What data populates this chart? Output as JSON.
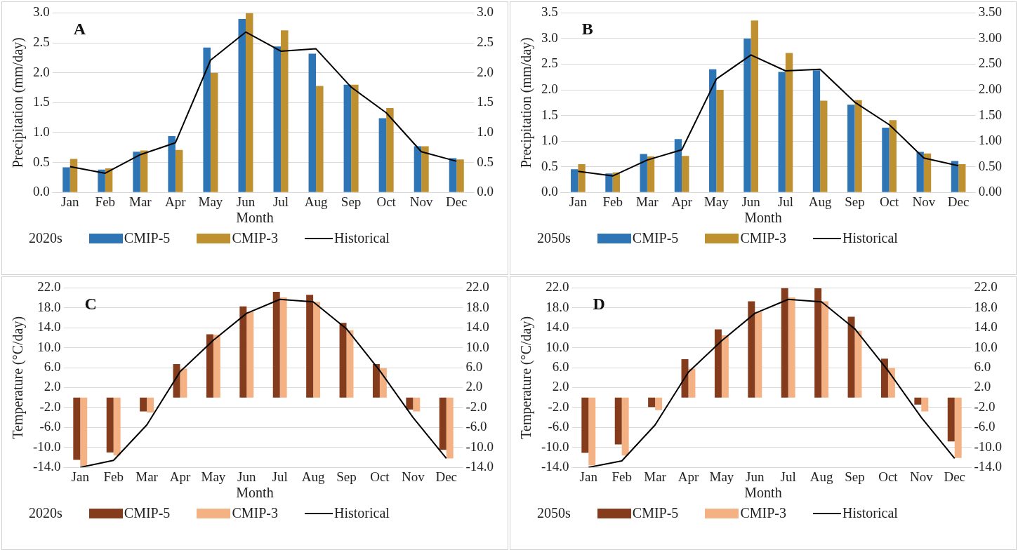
{
  "chart_data": [
    {
      "type": "bar",
      "ylabel": "Precipitation (mm/day)",
      "xlabel": "Month",
      "legend_title": "2020s",
      "legend": "bottom",
      "grid": "y",
      "marker": "none",
      "annotations": [
        "A"
      ],
      "categories": [
        "Jan",
        "Feb",
        "Mar",
        "Apr",
        "May",
        "Jun",
        "Jul",
        "Aug",
        "Sep",
        "Oct",
        "Nov",
        "Dec"
      ],
      "ylim": [
        0,
        3
      ],
      "yticks": [
        {
          "value": 0,
          "label": "0.0"
        },
        {
          "value": 0.5,
          "label": "0.5"
        },
        {
          "value": 1,
          "label": "1.0"
        },
        {
          "value": 1.5,
          "label": "1.5"
        },
        {
          "value": 2,
          "label": "2.0"
        },
        {
          "value": 2.5,
          "label": "2.5"
        },
        {
          "value": 3,
          "label": "3.0"
        }
      ],
      "y2lim": [
        0,
        3
      ],
      "y2ticks": [
        {
          "value": 0,
          "label": "0.0"
        },
        {
          "value": 0.5,
          "label": "0.5"
        },
        {
          "value": 1,
          "label": "1.0"
        },
        {
          "value": 1.5,
          "label": "1.5"
        },
        {
          "value": 2,
          "label": "2.0"
        },
        {
          "value": 2.5,
          "label": "2.5"
        },
        {
          "value": 3,
          "label": "3.0"
        }
      ],
      "series": [
        {
          "name": "CMIP-5",
          "type": "bar",
          "color": "#2e75b6",
          "values": [
            0.42,
            0.38,
            0.68,
            0.94,
            2.42,
            2.9,
            2.44,
            2.32,
            1.8,
            1.24,
            0.77,
            0.57
          ]
        },
        {
          "name": "CMIP-3",
          "type": "bar",
          "color": "#bf9030",
          "values": [
            0.56,
            0.4,
            0.7,
            0.71,
            2.0,
            3.0,
            2.71,
            1.78,
            1.8,
            1.41,
            0.77,
            0.55
          ]
        },
        {
          "name": "Historical",
          "type": "line",
          "color": "#000000",
          "values": [
            0.43,
            0.32,
            0.63,
            0.83,
            2.21,
            2.68,
            2.36,
            2.4,
            1.76,
            1.33,
            0.68,
            0.52
          ]
        }
      ]
    },
    {
      "type": "bar",
      "ylabel": "Precipitation (mm/day)",
      "xlabel": "Month",
      "legend_title": "2050s",
      "legend": "bottom",
      "grid": "y",
      "marker": "none",
      "annotations": [
        "B"
      ],
      "categories": [
        "Jan",
        "Feb",
        "Mar",
        "Apr",
        "May",
        "Jun",
        "Jul",
        "Aug",
        "Sep",
        "Oct",
        "Nov",
        "Dec"
      ],
      "ylim": [
        0,
        3.5
      ],
      "yticks": [
        {
          "value": 0,
          "label": "0.0"
        },
        {
          "value": 0.5,
          "label": "0.5"
        },
        {
          "value": 1,
          "label": "1.0"
        },
        {
          "value": 1.5,
          "label": "1.5"
        },
        {
          "value": 2,
          "label": "2.0"
        },
        {
          "value": 2.5,
          "label": "2.5"
        },
        {
          "value": 3,
          "label": "3.0"
        },
        {
          "value": 3.5,
          "label": "3.5"
        }
      ],
      "y2lim": [
        0,
        3.5
      ],
      "y2ticks": [
        {
          "value": 0,
          "label": "0.00"
        },
        {
          "value": 0.5,
          "label": "0.50"
        },
        {
          "value": 1,
          "label": "1.00"
        },
        {
          "value": 1.5,
          "label": "1.50"
        },
        {
          "value": 2,
          "label": "2.00"
        },
        {
          "value": 2.5,
          "label": "2.50"
        },
        {
          "value": 3,
          "label": "3.00"
        },
        {
          "value": 3.5,
          "label": "3.50"
        }
      ],
      "series": [
        {
          "name": "CMIP-5",
          "type": "bar",
          "color": "#2e75b6",
          "values": [
            0.45,
            0.37,
            0.75,
            1.04,
            2.4,
            3.0,
            2.35,
            2.38,
            1.71,
            1.26,
            0.79,
            0.61
          ]
        },
        {
          "name": "CMIP-3",
          "type": "bar",
          "color": "#bf9030",
          "values": [
            0.55,
            0.39,
            0.7,
            0.71,
            2.0,
            3.35,
            2.72,
            1.79,
            1.8,
            1.41,
            0.76,
            0.55
          ]
        },
        {
          "name": "Historical",
          "type": "line",
          "color": "#000000",
          "values": [
            0.41,
            0.32,
            0.63,
            0.83,
            2.21,
            2.68,
            2.37,
            2.4,
            1.76,
            1.32,
            0.67,
            0.52
          ]
        }
      ]
    },
    {
      "type": "bar",
      "ylabel": "Temperature (°C/day)",
      "xlabel": "Month",
      "legend_title": "2020s",
      "legend": "bottom",
      "grid": "y",
      "marker": "none",
      "annotations": [
        "C"
      ],
      "categories": [
        "Jan",
        "Feb",
        "Mar",
        "Apr",
        "May",
        "Jun",
        "Jul",
        "Aug",
        "Sep",
        "Oct",
        "Nov",
        "Dec"
      ],
      "ylim": [
        -14,
        22
      ],
      "yticks": [
        {
          "value": -14,
          "label": "-14.0"
        },
        {
          "value": -10,
          "label": "-10.0"
        },
        {
          "value": -6,
          "label": "-6.0"
        },
        {
          "value": -2,
          "label": "-2.0"
        },
        {
          "value": 2,
          "label": "2.0"
        },
        {
          "value": 6,
          "label": "6.0"
        },
        {
          "value": 10,
          "label": "10.0"
        },
        {
          "value": 14,
          "label": "14.0"
        },
        {
          "value": 18,
          "label": "18.0"
        },
        {
          "value": 22,
          "label": "22.0"
        }
      ],
      "y2lim": [
        -14,
        22
      ],
      "y2ticks": [
        {
          "value": -14,
          "label": "-14.0"
        },
        {
          "value": -10,
          "label": "-10.0"
        },
        {
          "value": -6,
          "label": "-6.0"
        },
        {
          "value": -2,
          "label": "-2.0"
        },
        {
          "value": 2,
          "label": "2.0"
        },
        {
          "value": 6,
          "label": "6.0"
        },
        {
          "value": 10,
          "label": "10.0"
        },
        {
          "value": 14,
          "label": "14.0"
        },
        {
          "value": 18,
          "label": "18.0"
        },
        {
          "value": 22,
          "label": "22.0"
        }
      ],
      "series": [
        {
          "name": "CMIP-5",
          "type": "bar",
          "color": "#843c1c",
          "values": [
            -12.5,
            -11.0,
            -2.8,
            6.7,
            12.7,
            18.3,
            21.2,
            20.6,
            15.0,
            6.7,
            -2.4,
            -10.5
          ]
        },
        {
          "name": "CMIP-3",
          "type": "bar",
          "color": "#f4b183",
          "values": [
            -13.7,
            -11.6,
            -3.0,
            5.8,
            12.6,
            17.2,
            20.1,
            19.2,
            13.5,
            5.9,
            -2.8,
            -12.2
          ]
        },
        {
          "name": "Historical",
          "type": "line",
          "color": "#000000",
          "values": [
            -14.0,
            -12.6,
            -5.5,
            5.2,
            11.5,
            16.9,
            19.7,
            19.2,
            13.8,
            5.4,
            -4.0,
            -12.2
          ]
        }
      ]
    },
    {
      "type": "bar",
      "ylabel": "Temperature (°C/day)",
      "xlabel": "Month",
      "legend_title": "2050s",
      "legend": "bottom",
      "grid": "y",
      "marker": "none",
      "annotations": [
        "D"
      ],
      "categories": [
        "Jan",
        "Feb",
        "Mar",
        "Apr",
        "May",
        "Jun",
        "Jul",
        "Aug",
        "Sep",
        "Oct",
        "Nov",
        "Dec"
      ],
      "ylim": [
        -14,
        22
      ],
      "yticks": [
        {
          "value": -14,
          "label": "-14.0"
        },
        {
          "value": -10,
          "label": "-10.0"
        },
        {
          "value": -6,
          "label": "-6.0"
        },
        {
          "value": -2,
          "label": "-2.0"
        },
        {
          "value": 2,
          "label": "2.0"
        },
        {
          "value": 6,
          "label": "6.0"
        },
        {
          "value": 10,
          "label": "10.0"
        },
        {
          "value": 14,
          "label": "14.0"
        },
        {
          "value": 18,
          "label": "18.0"
        },
        {
          "value": 22,
          "label": "22.0"
        }
      ],
      "y2lim": [
        -14,
        22
      ],
      "y2ticks": [
        {
          "value": -14,
          "label": "-14.0"
        },
        {
          "value": -10,
          "label": "-10.0"
        },
        {
          "value": -6,
          "label": "-6.0"
        },
        {
          "value": -2,
          "label": "-2.0"
        },
        {
          "value": 2,
          "label": "2.0"
        },
        {
          "value": 6,
          "label": "6.0"
        },
        {
          "value": 10,
          "label": "10.0"
        },
        {
          "value": 14,
          "label": "14.0"
        },
        {
          "value": 18,
          "label": "18.0"
        },
        {
          "value": 22,
          "label": "22.0"
        }
      ],
      "series": [
        {
          "name": "CMIP-5",
          "type": "bar",
          "color": "#843c1c",
          "values": [
            -11.1,
            -9.4,
            -1.9,
            7.7,
            13.7,
            19.3,
            22.0,
            21.9,
            16.2,
            7.8,
            -1.4,
            -8.8
          ]
        },
        {
          "name": "CMIP-3",
          "type": "bar",
          "color": "#f4b183",
          "values": [
            -13.6,
            -11.6,
            -2.5,
            5.8,
            12.5,
            17.2,
            20.1,
            19.3,
            13.4,
            5.9,
            -2.8,
            -12.1
          ]
        },
        {
          "name": "Historical",
          "type": "line",
          "color": "#000000",
          "values": [
            -14.0,
            -12.7,
            -5.5,
            5.1,
            11.4,
            16.9,
            19.7,
            19.2,
            13.8,
            5.4,
            -4.0,
            -12.2
          ]
        }
      ]
    }
  ]
}
